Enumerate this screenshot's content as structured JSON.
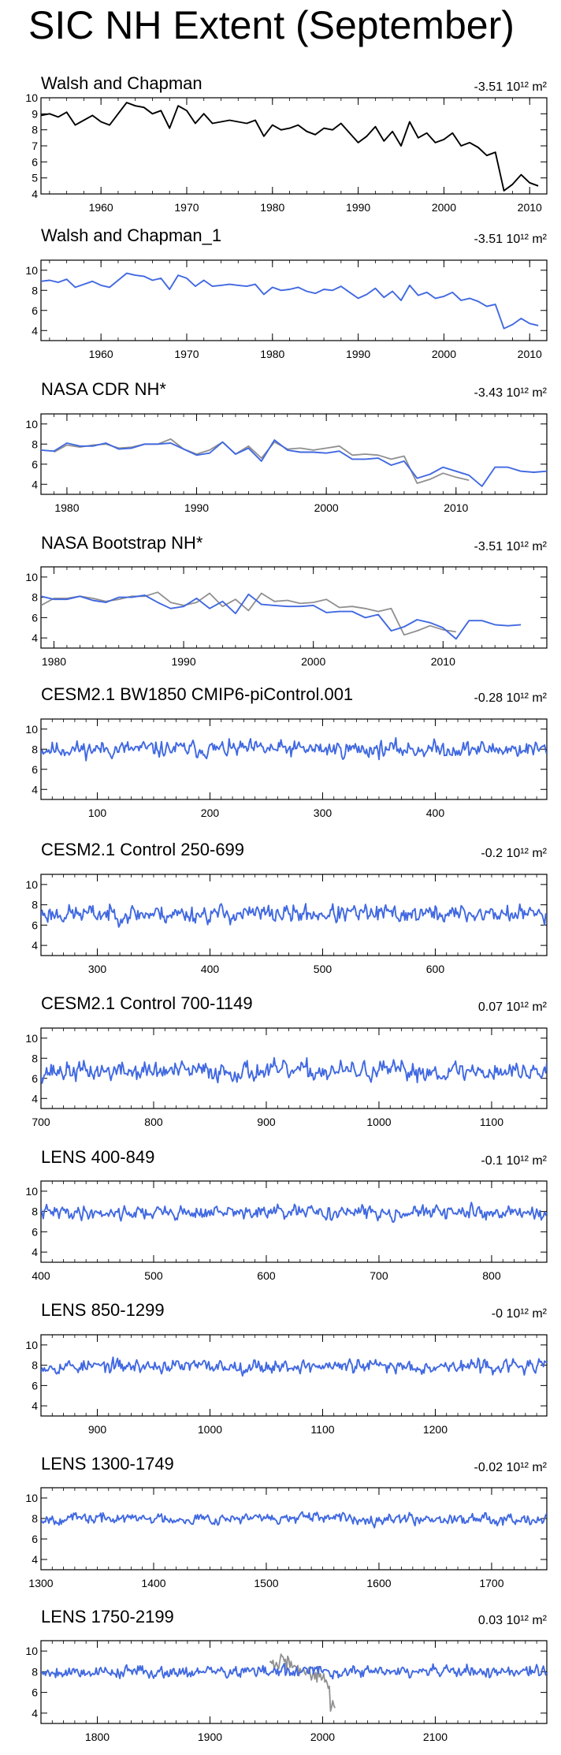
{
  "page": {
    "title": "SIC NH Extent (September)",
    "unit_label": "10¹² m²"
  },
  "colors": {
    "primary_line": "#4169e1",
    "observation_overlay": "#909090",
    "walsh_black_line": "#000000"
  },
  "chart_data": [
    {
      "type": "line",
      "title": "Walsh and Chapman",
      "trend": "-3.51",
      "xlim": [
        1953,
        2012
      ],
      "ylim": [
        4,
        10
      ],
      "xticks": [
        1960,
        1970,
        1980,
        1990,
        2000,
        2010
      ],
      "yticks": [
        4,
        5,
        6,
        7,
        8,
        9,
        10
      ],
      "series": [
        {
          "name": "Walsh and Chapman",
          "color": "#000000",
          "x_start": 1953,
          "x_step": 1,
          "values": [
            8.9,
            9.0,
            8.8,
            9.1,
            8.3,
            8.6,
            8.9,
            8.5,
            8.3,
            9.0,
            9.7,
            9.5,
            9.4,
            9.0,
            9.2,
            8.1,
            9.5,
            9.2,
            8.4,
            9.0,
            8.4,
            8.5,
            8.6,
            8.5,
            8.4,
            8.6,
            7.6,
            8.3,
            8.0,
            8.1,
            8.3,
            7.9,
            7.7,
            8.1,
            8.0,
            8.4,
            7.8,
            7.2,
            7.6,
            8.2,
            7.3,
            7.9,
            7.0,
            8.5,
            7.5,
            7.8,
            7.2,
            7.4,
            7.8,
            7.0,
            7.2,
            6.9,
            6.4,
            6.6,
            4.2,
            4.6,
            5.2,
            4.7,
            4.5
          ]
        }
      ]
    },
    {
      "type": "line",
      "title": "Walsh and Chapman_1",
      "trend": "-3.51",
      "xlim": [
        1953,
        2012
      ],
      "ylim": [
        3,
        11
      ],
      "xticks": [
        1960,
        1970,
        1980,
        1990,
        2000,
        2010
      ],
      "yticks": [
        4,
        6,
        8,
        10
      ],
      "series": [
        {
          "name": "Walsh and Chapman_1",
          "color": "#4169e1",
          "x_start": 1953,
          "x_step": 1,
          "values": [
            8.9,
            9.0,
            8.8,
            9.1,
            8.3,
            8.6,
            8.9,
            8.5,
            8.3,
            9.0,
            9.7,
            9.5,
            9.4,
            9.0,
            9.2,
            8.1,
            9.5,
            9.2,
            8.4,
            9.0,
            8.4,
            8.5,
            8.6,
            8.5,
            8.4,
            8.6,
            7.6,
            8.3,
            8.0,
            8.1,
            8.3,
            7.9,
            7.7,
            8.1,
            8.0,
            8.4,
            7.8,
            7.2,
            7.6,
            8.2,
            7.3,
            7.9,
            7.0,
            8.5,
            7.5,
            7.8,
            7.2,
            7.4,
            7.8,
            7.0,
            7.2,
            6.9,
            6.4,
            6.6,
            4.2,
            4.6,
            5.2,
            4.7,
            4.5
          ]
        }
      ]
    },
    {
      "type": "line",
      "title": "NASA CDR NH*",
      "trend": "-3.43",
      "xlim": [
        1978,
        2017
      ],
      "ylim": [
        3,
        11
      ],
      "xticks": [
        1980,
        1990,
        2000,
        2010
      ],
      "yticks": [
        4,
        6,
        8,
        10
      ],
      "series": [
        {
          "name": "NASA CDR NH*",
          "color": "#4169e1",
          "x_start": 1978,
          "x_step": 1,
          "values": [
            7.4,
            7.3,
            8.1,
            7.8,
            7.8,
            8.1,
            7.5,
            7.6,
            8.0,
            8.0,
            8.1,
            7.5,
            6.9,
            7.1,
            8.2,
            7.0,
            7.6,
            6.3,
            8.4,
            7.4,
            7.2,
            7.2,
            7.1,
            7.3,
            6.5,
            6.5,
            6.6,
            5.9,
            6.3,
            4.6,
            5.0,
            5.7,
            5.3,
            4.9,
            3.8,
            5.7,
            5.7,
            5.3,
            5.2,
            5.3
          ]
        },
        {
          "name": "observations",
          "color": "#909090",
          "x_start": 1979,
          "x_step": 1,
          "values": [
            7.2,
            7.9,
            7.7,
            7.9,
            8.0,
            7.6,
            7.7,
            8.0,
            8.0,
            8.5,
            7.5,
            7.0,
            7.4,
            8.2,
            7.0,
            7.8,
            6.6,
            8.2,
            7.5,
            7.6,
            7.4,
            7.6,
            7.8,
            6.9,
            7.0,
            6.9,
            6.5,
            6.8,
            4.1,
            4.5,
            5.1,
            4.7,
            4.4
          ]
        }
      ]
    },
    {
      "type": "line",
      "title": "NASA Bootstrap NH*",
      "trend": "-3.51",
      "xlim": [
        1979,
        2018
      ],
      "ylim": [
        3,
        11
      ],
      "xticks": [
        1980,
        1990,
        2000,
        2010
      ],
      "yticks": [
        4,
        6,
        8,
        10
      ],
      "series": [
        {
          "name": "NASA Bootstrap NH*",
          "color": "#4169e1",
          "x_start": 1979,
          "x_step": 1,
          "values": [
            8.1,
            7.8,
            7.8,
            8.1,
            7.7,
            7.5,
            8.0,
            8.0,
            8.2,
            7.5,
            6.9,
            7.1,
            7.9,
            6.9,
            7.6,
            6.4,
            8.3,
            7.3,
            7.2,
            7.1,
            7.1,
            7.2,
            6.5,
            6.6,
            6.6,
            6.0,
            6.3,
            4.7,
            5.1,
            5.8,
            5.5,
            5.0,
            3.9,
            5.7,
            5.7,
            5.3,
            5.2,
            5.3
          ]
        },
        {
          "name": "observations",
          "color": "#909090",
          "x_start": 1979,
          "x_step": 1,
          "values": [
            7.2,
            7.9,
            7.9,
            8.1,
            7.9,
            7.6,
            7.8,
            8.1,
            8.1,
            8.5,
            7.5,
            7.2,
            7.5,
            8.4,
            7.1,
            7.8,
            6.7,
            8.4,
            7.6,
            7.7,
            7.4,
            7.5,
            7.8,
            7.0,
            7.1,
            6.9,
            6.6,
            6.9,
            4.3,
            4.7,
            5.2,
            4.8,
            4.6
          ]
        }
      ]
    },
    {
      "type": "line",
      "title": "CESM2.1 BW1850 CMIP6-piControl.001",
      "trend": "-0.28",
      "xlim": [
        50,
        499
      ],
      "ylim": [
        3,
        11
      ],
      "xticks": [
        100,
        200,
        300,
        400
      ],
      "yticks": [
        4,
        6,
        8,
        10
      ],
      "noise": {
        "seed": 11,
        "mean": 8.0,
        "sd": 0.55,
        "x_start": 50,
        "x_end": 499
      },
      "series": [
        {
          "name": "CESM2.1 BW1850 CMIP6-piControl.001",
          "color": "#4169e1"
        }
      ]
    },
    {
      "type": "line",
      "title": "CESM2.1 Control 250-699",
      "trend": "-0.2",
      "xlim": [
        250,
        699
      ],
      "ylim": [
        3,
        11
      ],
      "xticks": [
        300,
        400,
        500,
        600
      ],
      "yticks": [
        4,
        6,
        8,
        10
      ],
      "noise": {
        "seed": 23,
        "mean": 7.1,
        "sd": 0.6,
        "x_start": 250,
        "x_end": 699
      },
      "series": [
        {
          "name": "CESM2.1 Control 250-699",
          "color": "#4169e1"
        }
      ]
    },
    {
      "type": "line",
      "title": "CESM2.1 Control 700-1149",
      "trend": "0.07",
      "xlim": [
        700,
        1149
      ],
      "ylim": [
        3,
        11
      ],
      "xticks": [
        700,
        800,
        900,
        1000,
        1100
      ],
      "yticks": [
        4,
        6,
        8,
        10
      ],
      "noise": {
        "seed": 37,
        "mean": 6.7,
        "sd": 0.65,
        "x_start": 700,
        "x_end": 1149
      },
      "series": [
        {
          "name": "CESM2.1 Control 700-1149",
          "color": "#4169e1"
        }
      ]
    },
    {
      "type": "line",
      "title": "LENS 400-849",
      "trend": "-0.1",
      "xlim": [
        400,
        849
      ],
      "ylim": [
        3,
        11
      ],
      "xticks": [
        400,
        500,
        600,
        700,
        800
      ],
      "yticks": [
        4,
        6,
        8,
        10
      ],
      "noise": {
        "seed": 41,
        "mean": 7.9,
        "sd": 0.45,
        "x_start": 400,
        "x_end": 849
      },
      "series": [
        {
          "name": "LENS 400-849",
          "color": "#4169e1"
        }
      ]
    },
    {
      "type": "line",
      "title": "LENS 850-1299",
      "trend": "-0",
      "xlim": [
        850,
        1299
      ],
      "ylim": [
        3,
        11
      ],
      "xticks": [
        900,
        1000,
        1100,
        1200
      ],
      "yticks": [
        4,
        6,
        8,
        10
      ],
      "noise": {
        "seed": 53,
        "mean": 7.9,
        "sd": 0.45,
        "x_start": 850,
        "x_end": 1299
      },
      "series": [
        {
          "name": "LENS 850-1299",
          "color": "#4169e1"
        }
      ]
    },
    {
      "type": "line",
      "title": "LENS 1300-1749",
      "trend": "-0.02",
      "xlim": [
        1300,
        1749
      ],
      "ylim": [
        3,
        11
      ],
      "xticks": [
        1300,
        1400,
        1500,
        1600,
        1700
      ],
      "yticks": [
        4,
        6,
        8,
        10
      ],
      "noise": {
        "seed": 67,
        "mean": 8.0,
        "sd": 0.35,
        "x_start": 1300,
        "x_end": 1749
      },
      "series": [
        {
          "name": "LENS 1300-1749",
          "color": "#4169e1"
        }
      ]
    },
    {
      "type": "line",
      "title": "LENS 1750-2199",
      "trend": "0.03",
      "xlim": [
        1750,
        2199
      ],
      "ylim": [
        3,
        11
      ],
      "xticks": [
        1800,
        1900,
        2000,
        2100
      ],
      "yticks": [
        4,
        6,
        8,
        10
      ],
      "noise": {
        "seed": 79,
        "mean": 8.0,
        "sd": 0.4,
        "x_start": 1750,
        "x_end": 2199
      },
      "series": [
        {
          "name": "LENS 1750-2199",
          "color": "#4169e1"
        },
        {
          "name": "observations",
          "color": "#909090",
          "x_start": 1953,
          "x_step": 1,
          "values": [
            8.9,
            9.0,
            8.8,
            9.1,
            8.3,
            8.6,
            8.9,
            8.5,
            8.3,
            9.0,
            9.7,
            9.5,
            9.4,
            9.0,
            9.2,
            8.1,
            9.5,
            9.2,
            8.4,
            9.0,
            8.4,
            8.5,
            8.6,
            8.5,
            8.4,
            8.6,
            7.6,
            8.3,
            8.0,
            8.1,
            8.3,
            7.9,
            7.7,
            8.1,
            8.0,
            8.4,
            7.8,
            7.2,
            7.6,
            8.2,
            7.3,
            7.9,
            7.0,
            8.5,
            7.5,
            7.8,
            7.2,
            7.4,
            7.8,
            7.0,
            7.2,
            6.9,
            6.4,
            6.6,
            4.2,
            4.6,
            5.2,
            4.7,
            4.5
          ]
        }
      ]
    }
  ]
}
